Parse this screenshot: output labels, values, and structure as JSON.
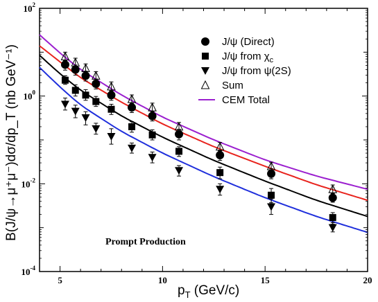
{
  "chart_data": {
    "type": "scatter",
    "title": "",
    "xlabel": {
      "main": "p",
      "sub": "T",
      "rest": " (GeV/c)"
    },
    "ylabel": "B(J/ψ→μ⁺μ⁻)dσ/dp_T (nb GeV⁻¹)",
    "xlim": [
      4,
      20
    ],
    "ylim": [
      0.0001,
      100
    ],
    "yscale": "log",
    "x_ticks": [
      "5",
      "10",
      "15",
      "20"
    ],
    "y_ticks": [
      {
        "base": "10",
        "exp": "-4"
      },
      {
        "base": "10",
        "exp": "-2"
      },
      {
        "base": "10",
        "exp": "0"
      },
      {
        "base": "10",
        "exp": "2"
      }
    ],
    "annotation": "Prompt Production",
    "legend_position": "top-right",
    "series": [
      {
        "key": "direct",
        "name": "J/ψ (Direct)",
        "label_main": "J/ψ (Direct)",
        "label_sub": "",
        "marker": "circle",
        "color": "#000000",
        "x": [
          5.25,
          5.75,
          6.25,
          6.75,
          7.5,
          8.5,
          9.5,
          10.8,
          12.8,
          15.3,
          18.3
        ],
        "y": [
          5.2,
          4.0,
          2.9,
          1.9,
          1.05,
          0.55,
          0.35,
          0.135,
          0.045,
          0.017,
          0.0048
        ],
        "err_lo": [
          3.9,
          3.0,
          2.2,
          1.45,
          0.8,
          0.42,
          0.27,
          0.1,
          0.034,
          0.013,
          0.0038
        ],
        "err_hi": [
          6.6,
          5.1,
          3.7,
          2.45,
          1.35,
          0.71,
          0.45,
          0.175,
          0.058,
          0.022,
          0.0062
        ]
      },
      {
        "key": "chic",
        "name": "J/ψ from χc",
        "label_main": "J/ψ from χ",
        "label_sub": "c",
        "marker": "square",
        "color": "#000000",
        "x": [
          5.25,
          5.75,
          6.25,
          6.75,
          7.5,
          8.5,
          9.5,
          10.8,
          12.8,
          15.3,
          18.3
        ],
        "y": [
          2.3,
          1.35,
          1.05,
          0.75,
          0.5,
          0.2,
          0.13,
          0.055,
          0.018,
          0.0055,
          0.0017
        ],
        "err_lo": [
          1.85,
          1.0,
          0.8,
          0.58,
          0.38,
          0.15,
          0.1,
          0.042,
          0.013,
          0.0037,
          0.0012
        ],
        "err_hi": [
          2.9,
          1.8,
          1.4,
          0.98,
          0.65,
          0.26,
          0.17,
          0.07,
          0.024,
          0.0078,
          0.0022
        ]
      },
      {
        "key": "psi2s",
        "name": "J/ψ from ψ(2S)",
        "label_main": "J/ψ from ψ(2S)",
        "label_sub": "",
        "marker": "triangle-down",
        "color": "#000000",
        "x": [
          5.25,
          5.75,
          6.25,
          6.75,
          7.5,
          8.5,
          9.5,
          10.8,
          12.8,
          15.3,
          18.3
        ],
        "y": [
          0.65,
          0.45,
          0.32,
          0.18,
          0.12,
          0.065,
          0.04,
          0.02,
          0.0075,
          0.003,
          0.001
        ],
        "err_lo": [
          0.48,
          0.32,
          0.22,
          0.135,
          0.08,
          0.05,
          0.03,
          0.015,
          0.0055,
          0.002,
          0.0008
        ],
        "err_hi": [
          0.9,
          0.62,
          0.44,
          0.24,
          0.18,
          0.085,
          0.053,
          0.026,
          0.01,
          0.0045,
          0.0013
        ]
      },
      {
        "key": "sum",
        "name": "Sum",
        "label_main": "Sum",
        "label_sub": "",
        "marker": "triangle-up-open",
        "color": "#000000",
        "x": [
          5.25,
          5.75,
          6.25,
          6.75,
          7.5,
          8.5,
          9.5,
          10.8,
          12.8,
          15.3,
          18.3
        ],
        "y": [
          8.0,
          5.8,
          4.3,
          2.9,
          1.65,
          0.85,
          0.55,
          0.2,
          0.07,
          0.025,
          0.0075
        ],
        "err_lo": [
          6.4,
          4.6,
          3.4,
          2.3,
          1.3,
          0.68,
          0.44,
          0.16,
          0.056,
          0.02,
          0.006
        ],
        "err_hi": [
          10.0,
          7.3,
          5.4,
          3.6,
          2.1,
          1.06,
          0.69,
          0.25,
          0.088,
          0.031,
          0.0094
        ]
      }
    ],
    "curves": [
      {
        "key": "cem_total",
        "name": "CEM Total",
        "color": "#9b1fcf",
        "x": [
          4,
          5,
          6,
          8,
          10,
          12.5,
          15,
          17.5,
          20
        ],
        "y": [
          25,
          9.5,
          4.0,
          1.05,
          0.33,
          0.1,
          0.035,
          0.015,
          0.0075
        ]
      },
      {
        "key": "cem_red",
        "name": "",
        "color": "#e8231d",
        "x": [
          4,
          5,
          6,
          8,
          10,
          12.5,
          15,
          17.5,
          20
        ],
        "y": [
          14,
          6.0,
          2.6,
          0.72,
          0.23,
          0.07,
          0.025,
          0.0095,
          0.0042
        ]
      },
      {
        "key": "cem_black",
        "name": "",
        "color": "#000000",
        "x": [
          4,
          5,
          6,
          8,
          10,
          12.5,
          15,
          17.5,
          20
        ],
        "y": [
          8.5,
          3.2,
          1.35,
          0.35,
          0.115,
          0.034,
          0.0115,
          0.0042,
          0.0018
        ]
      },
      {
        "key": "cem_blue",
        "name": "",
        "color": "#1f2fdc",
        "x": [
          4,
          5,
          6,
          8,
          10,
          12.5,
          15,
          17.5,
          20
        ],
        "y": [
          4.5,
          1.6,
          0.62,
          0.155,
          0.05,
          0.0145,
          0.0048,
          0.0018,
          0.00078
        ]
      }
    ],
    "legend": [
      {
        "key": "direct",
        "label": "J/ψ (Direct)",
        "sub": "",
        "marker": "circle"
      },
      {
        "key": "chic",
        "label": "J/ψ from χ",
        "sub": "c",
        "marker": "square"
      },
      {
        "key": "psi2s",
        "label": "J/ψ from ψ(2S)",
        "sub": "",
        "marker": "triangle-down"
      },
      {
        "key": "sum",
        "label": "Sum",
        "sub": "",
        "marker": "triangle-up-open"
      },
      {
        "key": "cem_total",
        "label": "CEM Total",
        "sub": "",
        "marker": "line",
        "color": "#9b1fcf"
      }
    ]
  }
}
